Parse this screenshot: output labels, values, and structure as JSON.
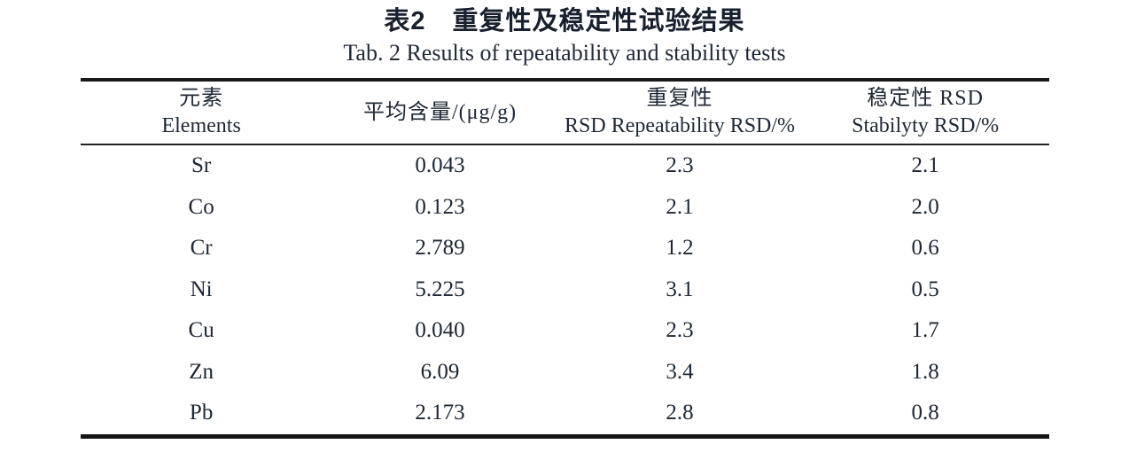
{
  "title_zh": "表2　重复性及稳定性试验结果",
  "title_en": "Tab. 2 Results of repeatability and stability tests",
  "table": {
    "columns": [
      {
        "zh": "元素",
        "en": "Elements"
      },
      {
        "zh": "平均含量/(μg/g)",
        "en": ""
      },
      {
        "zh": "重复性",
        "en": "RSD Repeatability RSD/%"
      },
      {
        "zh": "稳定性 RSD",
        "en": "Stabilyty RSD/%"
      }
    ],
    "rows": [
      {
        "element": "Sr",
        "mean": "0.043",
        "repeatability": "2.3",
        "stability": "2.1"
      },
      {
        "element": "Co",
        "mean": "0.123",
        "repeatability": "2.1",
        "stability": "2.0"
      },
      {
        "element": "Cr",
        "mean": "2.789",
        "repeatability": "1.2",
        "stability": "0.6"
      },
      {
        "element": "Ni",
        "mean": "5.225",
        "repeatability": "3.1",
        "stability": "0.5"
      },
      {
        "element": "Cu",
        "mean": "0.040",
        "repeatability": "2.3",
        "stability": "1.7"
      },
      {
        "element": "Zn",
        "mean": "6.09",
        "repeatability": "3.4",
        "stability": "1.8"
      },
      {
        "element": "Pb",
        "mean": "2.173",
        "repeatability": "2.8",
        "stability": "0.8"
      }
    ]
  }
}
